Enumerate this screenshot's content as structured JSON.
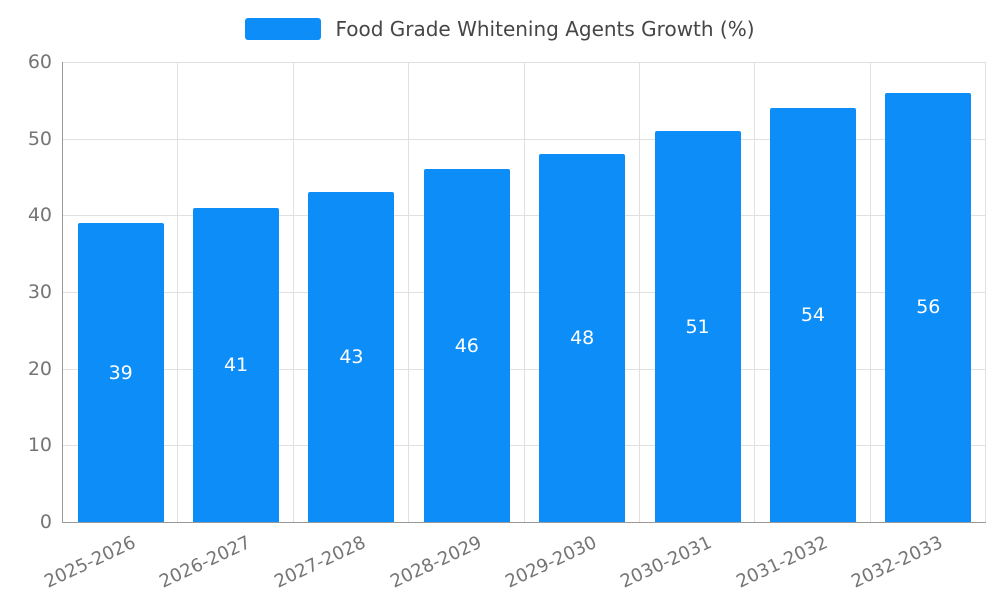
{
  "legend": {
    "label": "Food Grade Whitening Agents Growth (%)"
  },
  "chart_data": {
    "type": "bar",
    "title": "Food Grade Whitening Agents Growth (%)",
    "categories": [
      "2025-2026",
      "2026-2027",
      "2027-2028",
      "2028-2029",
      "2029-2030",
      "2030-2031",
      "2031-2032",
      "2032-2033"
    ],
    "values": [
      39,
      41,
      43,
      46,
      48,
      51,
      54,
      56
    ],
    "xlabel": "",
    "ylabel": "",
    "ylim": [
      0,
      60
    ],
    "yticks": [
      0,
      10,
      20,
      30,
      40,
      50,
      60
    ],
    "grid": true,
    "legend_position": "top-center",
    "bar_color": "#0d8df8",
    "value_label_color": "#ffffff",
    "axis_text_color": "#757575",
    "grid_color": "#e0e0e0"
  }
}
